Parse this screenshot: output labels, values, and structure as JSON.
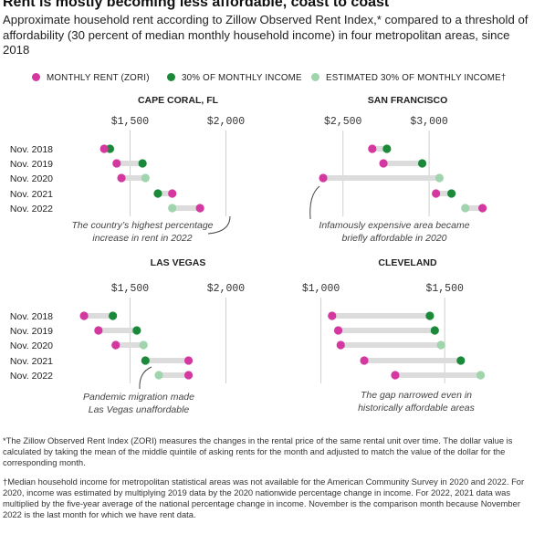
{
  "title": "Rent is mostly becoming less affordable, coast to coast",
  "subtitle": "Approximate household rent according to Zillow Observed Rent Index,* compared to a threshold of affordability (30 percent of median monthly household income) in four metropolitan areas, since 2018",
  "legend": [
    {
      "label": "MONTHLY RENT (ZORI)",
      "color": "#d4379f"
    },
    {
      "label": "30% OF MONTHLY INCOME",
      "color": "#1a8a3a"
    },
    {
      "label": "ESTIMATED 30% OF MONTHLY INCOME†",
      "color": "#9fd4ac"
    }
  ],
  "colors": {
    "rent": "#d4379f",
    "income": "#1a8a3a",
    "estimated": "#9fd4ac",
    "connector": "#dcdcdc",
    "grid": "#cfcfcf"
  },
  "chart_data": [
    {
      "type": "dumbbell",
      "title": "CAPE CORAL, FL",
      "xlim": [
        1250,
        2250
      ],
      "ticks": [
        {
          "value": 1500,
          "label": "$1,500"
        },
        {
          "value": 2000,
          "label": "$2,000"
        }
      ],
      "categories": [
        "Nov. 2018",
        "Nov. 2019",
        "Nov. 2020",
        "Nov. 2021",
        "Nov. 2022"
      ],
      "series": [
        {
          "name": "MONTHLY RENT (ZORI)",
          "values": [
            1365,
            1430,
            1455,
            1720,
            1865
          ]
        },
        {
          "name": "30% OF MONTHLY INCOME",
          "values": [
            1395,
            1565,
            null,
            1645,
            null
          ]
        },
        {
          "name": "ESTIMATED 30% OF MONTHLY INCOME†",
          "values": [
            null,
            null,
            1580,
            null,
            1720
          ]
        }
      ],
      "annotation": {
        "lines": [
          "The country’s highest percentage",
          "increase in rent in 2022"
        ]
      }
    },
    {
      "type": "dumbbell",
      "title": "SAN FRANCISCO",
      "xlim": [
        2300,
        3450
      ],
      "ticks": [
        {
          "value": 2500,
          "label": "$2,500"
        },
        {
          "value": 3000,
          "label": "$3,000"
        }
      ],
      "categories": [
        "Nov. 2018",
        "Nov. 2019",
        "Nov. 2020",
        "Nov. 2021",
        "Nov. 2022"
      ],
      "series": [
        {
          "name": "MONTHLY RENT (ZORI)",
          "values": [
            2670,
            2735,
            2385,
            3040,
            3310
          ]
        },
        {
          "name": "30% OF MONTHLY INCOME",
          "values": [
            2755,
            2960,
            null,
            3130,
            null
          ]
        },
        {
          "name": "ESTIMATED 30% OF MONTHLY INCOME†",
          "values": [
            null,
            null,
            3060,
            null,
            3210
          ]
        }
      ],
      "annotation": {
        "lines": [
          "Infamously expensive area became",
          "briefly affordable in 2020"
        ]
      }
    },
    {
      "type": "dumbbell",
      "title": "LAS VEGAS",
      "xlim": [
        1250,
        2250
      ],
      "ticks": [
        {
          "value": 1500,
          "label": "$1,500"
        },
        {
          "value": 2000,
          "label": "$2,000"
        }
      ],
      "categories": [
        "Nov. 2018",
        "Nov. 2019",
        "Nov. 2020",
        "Nov. 2021",
        "Nov. 2022"
      ],
      "series": [
        {
          "name": "MONTHLY RENT (ZORI)",
          "values": [
            1260,
            1335,
            1425,
            1805,
            1805
          ]
        },
        {
          "name": "30% OF MONTHLY INCOME",
          "values": [
            1410,
            1535,
            null,
            1580,
            null
          ]
        },
        {
          "name": "ESTIMATED 30% OF MONTHLY INCOME†",
          "values": [
            null,
            null,
            1570,
            null,
            1650
          ]
        }
      ],
      "annotation": {
        "lines": [
          "Pandemic migration made",
          "Las Vegas unaffordable"
        ]
      }
    },
    {
      "type": "dumbbell",
      "title": "CLEVELAND",
      "xlim": [
        950,
        1750
      ],
      "ticks": [
        {
          "value": 1000,
          "label": "$1,000"
        },
        {
          "value": 1500,
          "label": "$1,500"
        }
      ],
      "categories": [
        "Nov. 2018",
        "Nov. 2019",
        "Nov. 2020",
        "Nov. 2021",
        "Nov. 2022"
      ],
      "series": [
        {
          "name": "MONTHLY RENT (ZORI)",
          "values": [
            1045,
            1070,
            1080,
            1175,
            1300
          ]
        },
        {
          "name": "30% OF MONTHLY INCOME",
          "values": [
            1440,
            1460,
            null,
            1565,
            null
          ]
        },
        {
          "name": "ESTIMATED 30% OF MONTHLY INCOME†",
          "values": [
            null,
            null,
            1485,
            null,
            1645
          ]
        }
      ],
      "annotation": {
        "lines": [
          "The gap narrowed even in",
          "historically affordable areas"
        ]
      }
    }
  ],
  "footnotes": [
    "*The Zillow Observed Rent Index (ZORI) measures the changes in the rental price of the same rental unit over time. The dollar value is calculated by taking the mean of the middle quintile of asking rents for the month and adjusted to match the value of the dollar for the corresponding month.",
    "†Median household income for metropolitan statistical areas was not available for the American Community Survey in 2020 and 2022. For 2020, income was estimated by multiplying 2019 data by the 2020 nationwide percentage change in income. For 2022, 2021 data was multiplied by the five-year average of the national percentage change in income. November is the comparison month because November 2022 is the last month for which we have rent data."
  ]
}
